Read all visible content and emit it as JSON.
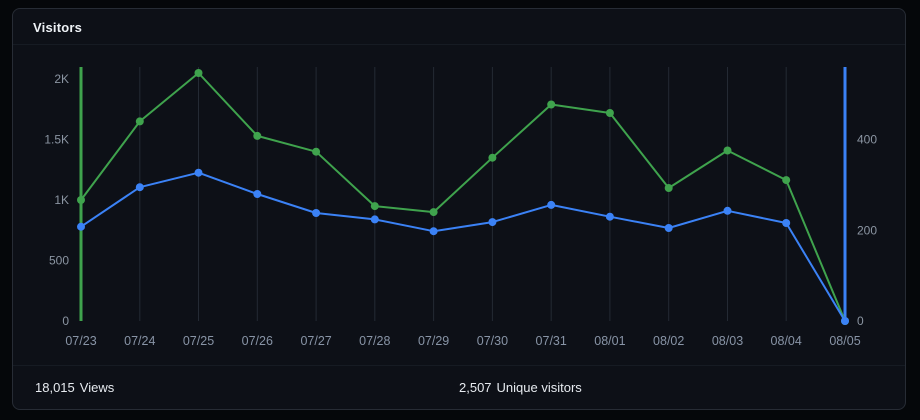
{
  "panel": {
    "title": "Visitors"
  },
  "footer": {
    "views": {
      "value": "18,015",
      "label": "Views"
    },
    "unique": {
      "value": "2,507",
      "label": "Unique visitors"
    }
  },
  "chart_data": {
    "type": "line",
    "title": "Visitors",
    "x": [
      "07/23",
      "07/24",
      "07/25",
      "07/26",
      "07/27",
      "07/28",
      "07/29",
      "07/30",
      "07/31",
      "08/01",
      "08/02",
      "08/03",
      "08/04",
      "08/05"
    ],
    "series": [
      {
        "name": "Views",
        "axis": "left",
        "color": "#3fa34d",
        "values": [
          1000,
          1650,
          2050,
          1530,
          1400,
          950,
          900,
          1350,
          1790,
          1720,
          1100,
          1410,
          1165,
          0
        ]
      },
      {
        "name": "Unique visitors",
        "axis": "right",
        "color": "#3b82f6",
        "values": [
          208,
          295,
          327,
          280,
          238,
          224,
          198,
          218,
          256,
          230,
          205,
          243,
          216,
          0
        ]
      }
    ],
    "left_axis": {
      "ticks": [
        0,
        500,
        1000,
        1500,
        2000
      ],
      "tick_labels": [
        "0",
        "500",
        "1K",
        "1.5K",
        "2K"
      ],
      "max": 2100
    },
    "right_axis": {
      "ticks": [
        0,
        200,
        400
      ],
      "tick_labels": [
        "0",
        "200",
        "400"
      ],
      "max": 560
    },
    "grid": "vertical",
    "grid_color": "#242a34",
    "legend": "none"
  }
}
